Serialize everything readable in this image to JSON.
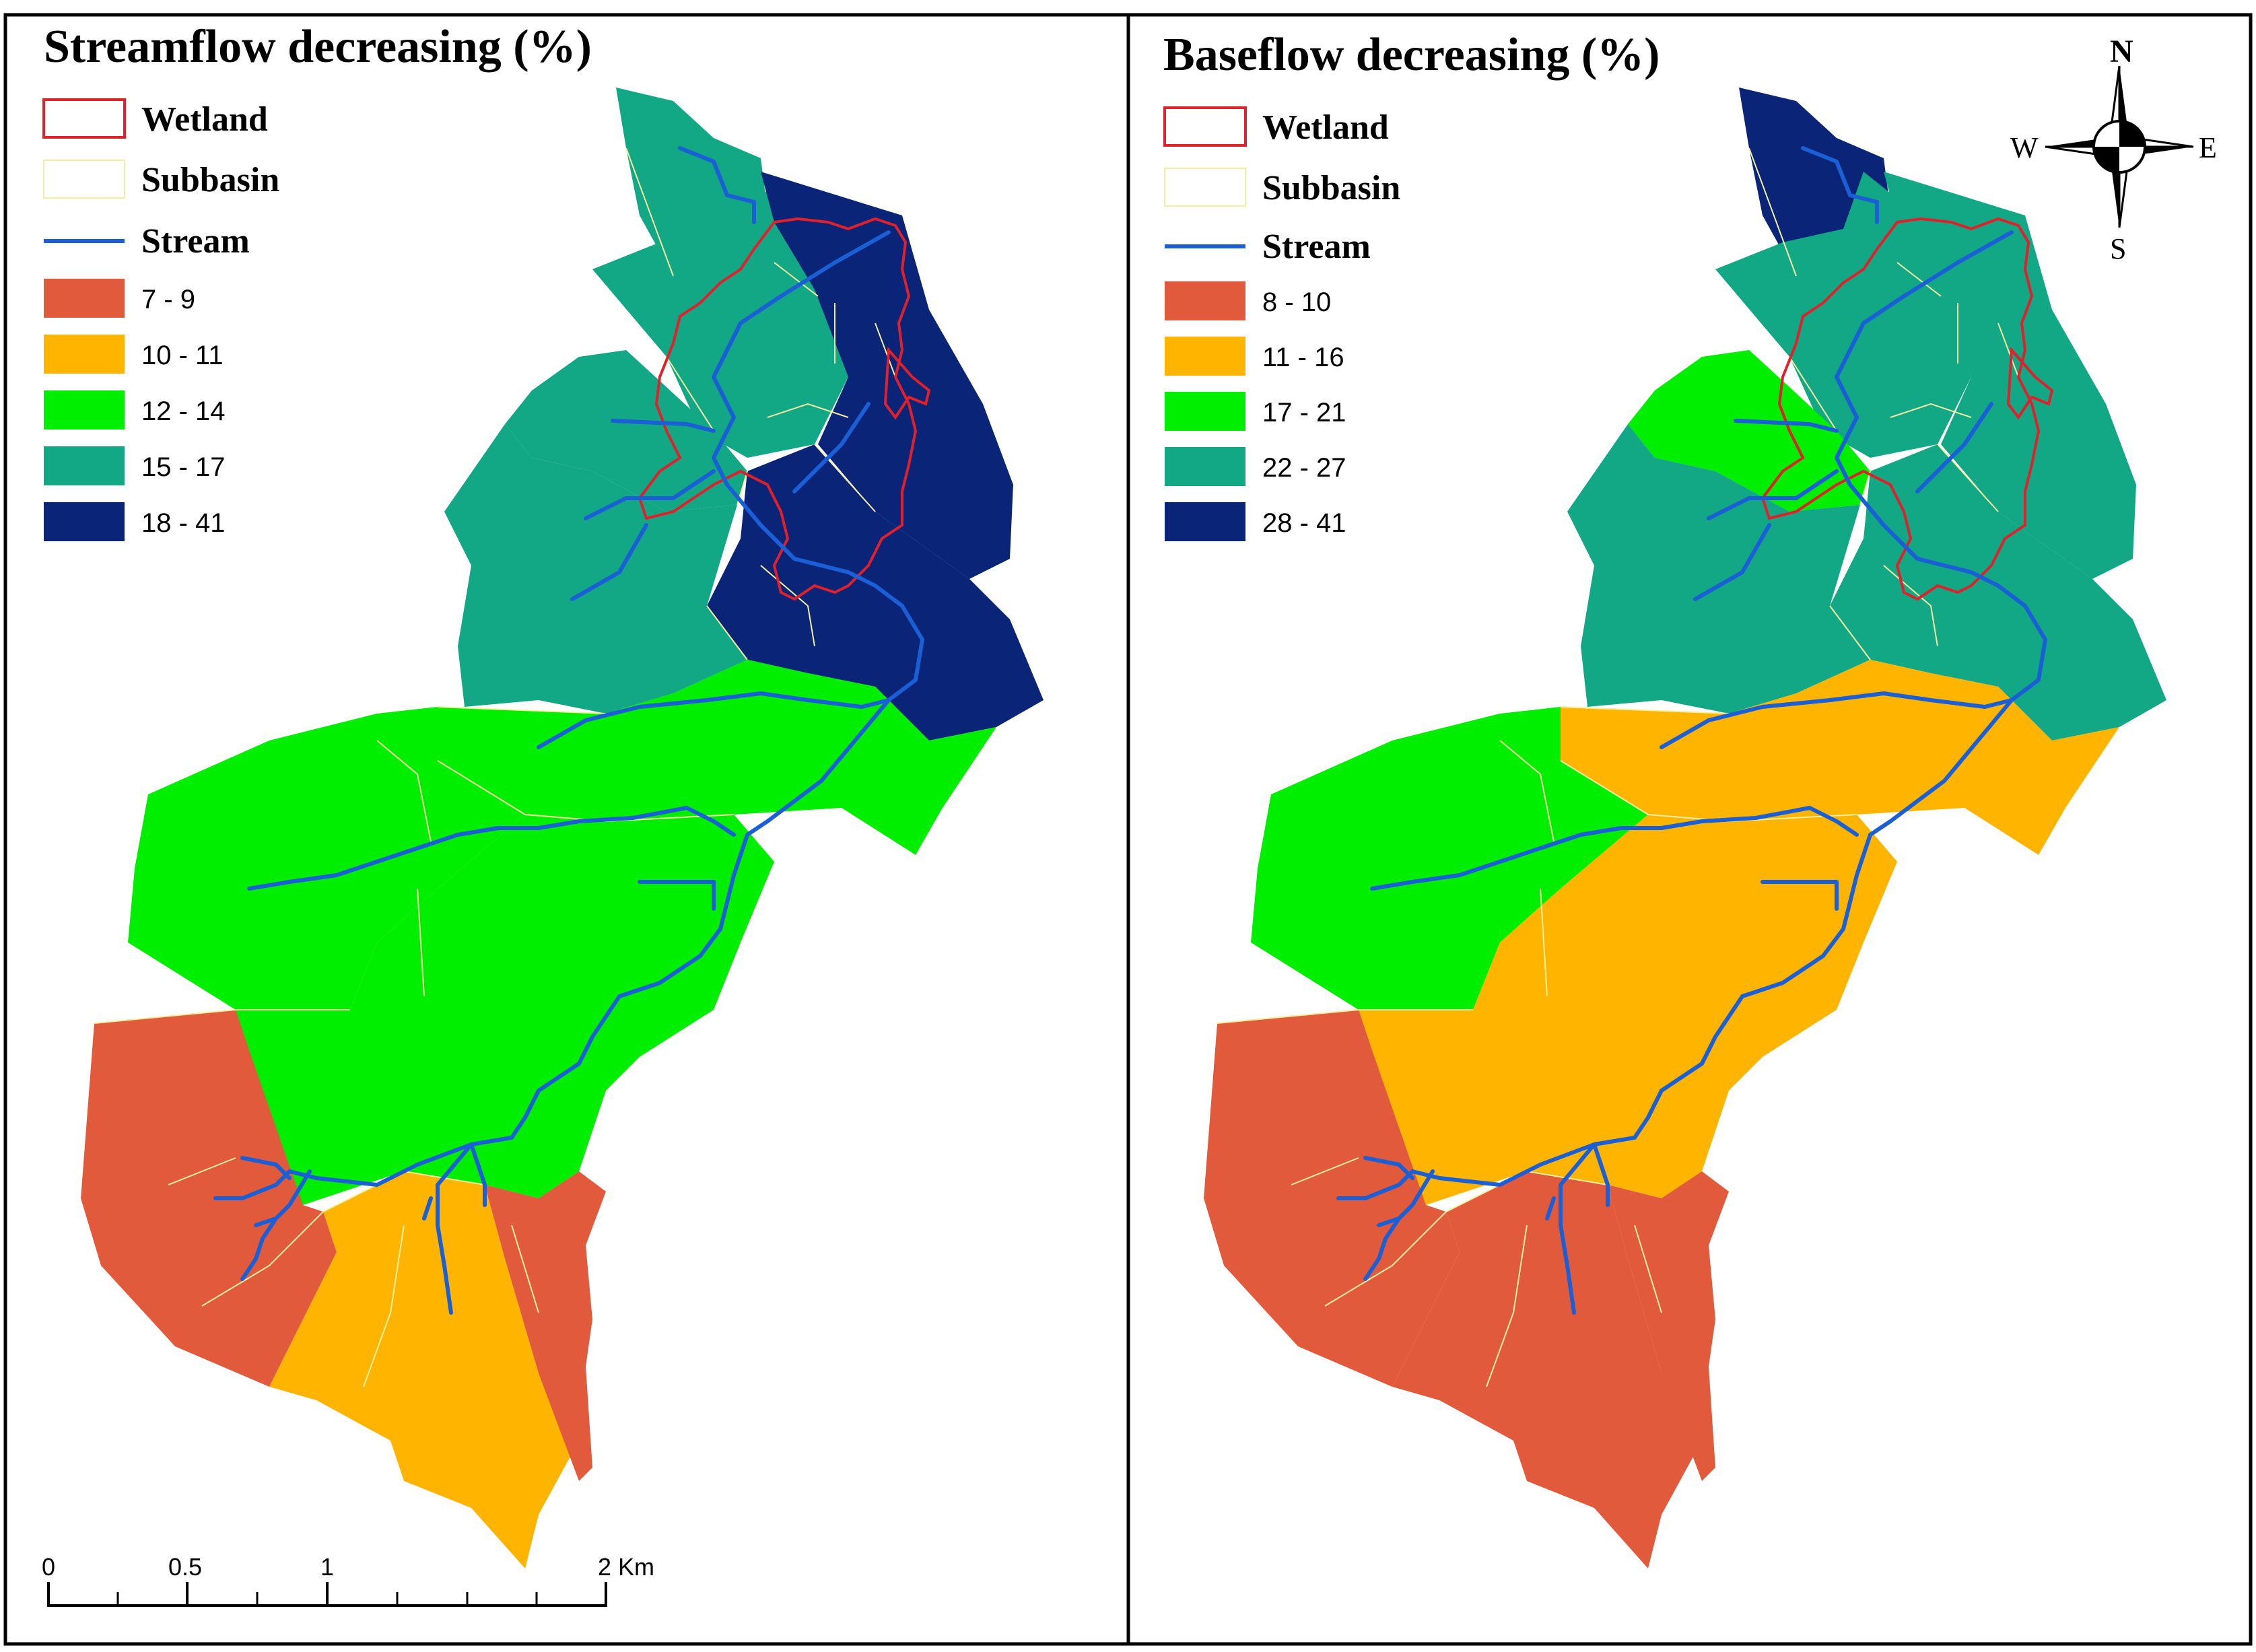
{
  "panels": [
    {
      "title": "Streamflow decreasing (%)",
      "legend": {
        "wetland": "Wetland",
        "subbasin": "Subbasin",
        "stream": "Stream",
        "classes": [
          {
            "label": "7 - 9",
            "color": "#e15a3c"
          },
          {
            "label": "10 - 11",
            "color": "#ffb400"
          },
          {
            "label": "12 - 14",
            "color": "#00ee00"
          },
          {
            "label": "15 - 17",
            "color": "#12a785"
          },
          {
            "label": "18 - 41",
            "color": "#0a2478"
          }
        ]
      },
      "regions": [
        "c4",
        "c4",
        "c5",
        "c4",
        "c5",
        "c4",
        "c3",
        "c3",
        "c2",
        "c3",
        "c1",
        "c2",
        "c1"
      ]
    },
    {
      "title": "Baseflow decreasing (%)",
      "legend": {
        "wetland": "Wetland",
        "subbasin": "Subbasin",
        "stream": "Stream",
        "classes": [
          {
            "label": "8 - 10",
            "color": "#e15a3c"
          },
          {
            "label": "11 - 16",
            "color": "#ffb400"
          },
          {
            "label": "17 - 21",
            "color": "#00ee00"
          },
          {
            "label": "22 - 27",
            "color": "#12a785"
          },
          {
            "label": "28 - 41",
            "color": "#0a2478"
          }
        ]
      },
      "regions": [
        "c5",
        "c4",
        "c4",
        "c3",
        "c4",
        "c4",
        "c2",
        "c3",
        "c2",
        "c2",
        "c1",
        "c1",
        "c1"
      ]
    }
  ],
  "scale_bar": {
    "labels": [
      "0",
      "0.5",
      "1",
      "2 Km"
    ]
  },
  "compass": {
    "n": "N",
    "s": "S",
    "e": "E",
    "w": "W"
  },
  "colors": {
    "wetland_outline": "#e0202a",
    "stream": "#1a5fd6",
    "subbasin_line": "#f2f0a0",
    "frame": "#000000"
  }
}
